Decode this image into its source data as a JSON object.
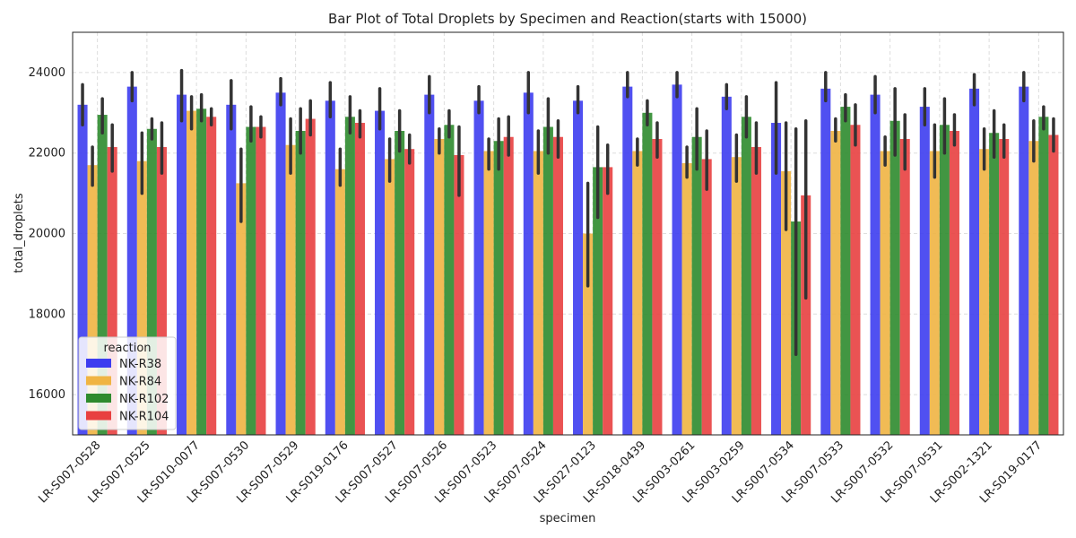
{
  "chart_data": {
    "type": "bar",
    "title": "Bar Plot of Total Droplets by Specimen and Reaction(starts with 15000)",
    "xlabel": "specimen",
    "ylabel": "total_droplets",
    "ylim": [
      15000,
      25000
    ],
    "yticks": [
      16000,
      18000,
      20000,
      22000,
      24000
    ],
    "grid": true,
    "categories": [
      "LR-S007-0528",
      "LR-S007-0525",
      "LR-S010-0077",
      "LR-S007-0530",
      "LR-S007-0529",
      "LR-S019-0176",
      "LR-S007-0527",
      "LR-S007-0526",
      "LR-S007-0523",
      "LR-S007-0524",
      "LR-S027-0123",
      "LR-S018-0439",
      "LR-S003-0261",
      "LR-S003-0259",
      "LR-S007-0534",
      "LR-S007-0533",
      "LR-S007-0532",
      "LR-S007-0531",
      "LR-S002-1321",
      "LR-S019-0177"
    ],
    "legend": {
      "title": "reaction",
      "placement": "lower-left"
    },
    "series": [
      {
        "name": "NK-R38",
        "color": "#3d3df0",
        "values": [
          23200,
          23650,
          23450,
          23200,
          23500,
          23300,
          23050,
          23450,
          23300,
          23500,
          23300,
          23650,
          23700,
          23400,
          22750,
          23600,
          23450,
          23150,
          23600,
          23650
        ],
        "err_low": [
          22700,
          23300,
          22800,
          22600,
          23200,
          22900,
          22600,
          23000,
          23000,
          23000,
          23000,
          23400,
          23400,
          23100,
          21500,
          23300,
          23000,
          22700,
          23200,
          23300
        ],
        "err_high": [
          23700,
          24000,
          24050,
          23800,
          23850,
          23750,
          23600,
          23900,
          23650,
          24000,
          23650,
          24000,
          24000,
          23700,
          23750,
          24000,
          23900,
          23600,
          23950,
          24000
        ]
      },
      {
        "name": "NK-R84",
        "color": "#f0b443",
        "values": [
          21700,
          21800,
          23050,
          21250,
          22200,
          21600,
          21850,
          22350,
          22050,
          22050,
          20000,
          22050,
          21750,
          21900,
          21550,
          22550,
          22050,
          22050,
          22100,
          22300
        ],
        "err_low": [
          21200,
          21000,
          22600,
          20300,
          21500,
          21200,
          21300,
          22000,
          21600,
          21500,
          18700,
          21700,
          21400,
          21300,
          20100,
          22300,
          21700,
          21400,
          21600,
          21800
        ],
        "err_high": [
          22150,
          22500,
          23400,
          22100,
          22850,
          22100,
          22350,
          22600,
          22350,
          22550,
          21250,
          22350,
          22150,
          22450,
          22750,
          22850,
          22400,
          22700,
          22600,
          22800
        ]
      },
      {
        "name": "NK-R102",
        "color": "#2e8b2e",
        "values": [
          22950,
          22600,
          23100,
          22650,
          22550,
          22900,
          22550,
          22700,
          22300,
          22650,
          21650,
          23000,
          22400,
          22900,
          20300,
          23150,
          22800,
          22700,
          22500,
          22900
        ],
        "err_low": [
          22500,
          22350,
          22800,
          22300,
          22000,
          22500,
          22050,
          22400,
          21600,
          22000,
          20400,
          22700,
          21600,
          22400,
          17000,
          22800,
          21950,
          22000,
          21900,
          22600
        ],
        "err_high": [
          23350,
          22850,
          23450,
          23150,
          23100,
          23400,
          23050,
          23050,
          22850,
          23350,
          22650,
          23300,
          23100,
          23400,
          22600,
          23450,
          23600,
          23350,
          23050,
          23150
        ]
      },
      {
        "name": "NK-R104",
        "color": "#e84040",
        "values": [
          22150,
          22150,
          22900,
          22650,
          22850,
          22750,
          22100,
          21950,
          22400,
          22400,
          21650,
          22350,
          21850,
          22150,
          20950,
          22700,
          22350,
          22550,
          22350,
          22450
        ],
        "err_low": [
          21550,
          21500,
          22700,
          22400,
          22450,
          22400,
          21750,
          20950,
          21950,
          21900,
          21000,
          21900,
          21100,
          21500,
          18400,
          22200,
          21600,
          22200,
          21900,
          22050
        ],
        "err_high": [
          22700,
          22750,
          23100,
          22900,
          23300,
          23050,
          22450,
          22650,
          22900,
          22800,
          22200,
          22750,
          22550,
          22750,
          22800,
          23200,
          22950,
          22950,
          22700,
          22850
        ]
      }
    ]
  }
}
